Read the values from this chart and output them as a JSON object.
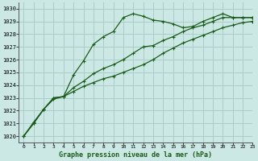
{
  "bg_color": "#cce8e4",
  "grid_color": "#aaccc8",
  "line_color": "#1a5c1a",
  "xlabel": "Graphe pression niveau de la mer (hPa)",
  "xlim": [
    -0.5,
    23
  ],
  "ylim": [
    1019.5,
    1030.5
  ],
  "yticks": [
    1020,
    1021,
    1022,
    1023,
    1024,
    1025,
    1026,
    1027,
    1028,
    1029,
    1030
  ],
  "xticks": [
    0,
    1,
    2,
    3,
    4,
    5,
    6,
    7,
    8,
    9,
    10,
    11,
    12,
    13,
    14,
    15,
    16,
    17,
    18,
    19,
    20,
    21,
    22,
    23
  ],
  "series1_x": [
    0,
    1,
    2,
    3,
    4,
    5,
    6,
    7,
    8,
    9,
    10,
    11,
    12,
    13,
    14,
    15,
    16,
    17,
    18,
    19,
    20,
    21,
    22,
    23
  ],
  "series1_y": [
    1020.0,
    1021.1,
    1022.1,
    1022.9,
    1023.1,
    1024.8,
    1025.9,
    1027.2,
    1027.8,
    1028.2,
    1029.3,
    1029.6,
    1029.4,
    1029.1,
    1029.0,
    1028.8,
    1028.5,
    1028.6,
    1029.0,
    1029.3,
    1029.6,
    1029.3,
    1029.3,
    1029.3
  ],
  "series2_x": [
    0,
    1,
    2,
    3,
    4,
    5,
    6,
    7,
    8,
    9,
    10,
    11,
    12,
    13,
    14,
    15,
    16,
    17,
    18,
    19,
    20,
    21,
    22,
    23
  ],
  "series2_y": [
    1020.0,
    1021.0,
    1022.1,
    1023.0,
    1023.1,
    1023.8,
    1024.3,
    1024.9,
    1025.3,
    1025.6,
    1026.0,
    1026.5,
    1027.0,
    1027.1,
    1027.5,
    1027.8,
    1028.2,
    1028.5,
    1028.7,
    1029.0,
    1029.3,
    1029.3,
    1029.3,
    1029.3
  ],
  "series3_x": [
    0,
    1,
    2,
    3,
    4,
    5,
    6,
    7,
    8,
    9,
    10,
    11,
    12,
    13,
    14,
    15,
    16,
    17,
    18,
    19,
    20,
    21,
    22,
    23
  ],
  "series3_y": [
    1020.0,
    1021.0,
    1022.1,
    1023.0,
    1023.1,
    1023.5,
    1023.9,
    1024.2,
    1024.5,
    1024.7,
    1025.0,
    1025.3,
    1025.6,
    1026.0,
    1026.5,
    1026.9,
    1027.3,
    1027.6,
    1027.9,
    1028.2,
    1028.5,
    1028.7,
    1028.9,
    1029.0
  ]
}
